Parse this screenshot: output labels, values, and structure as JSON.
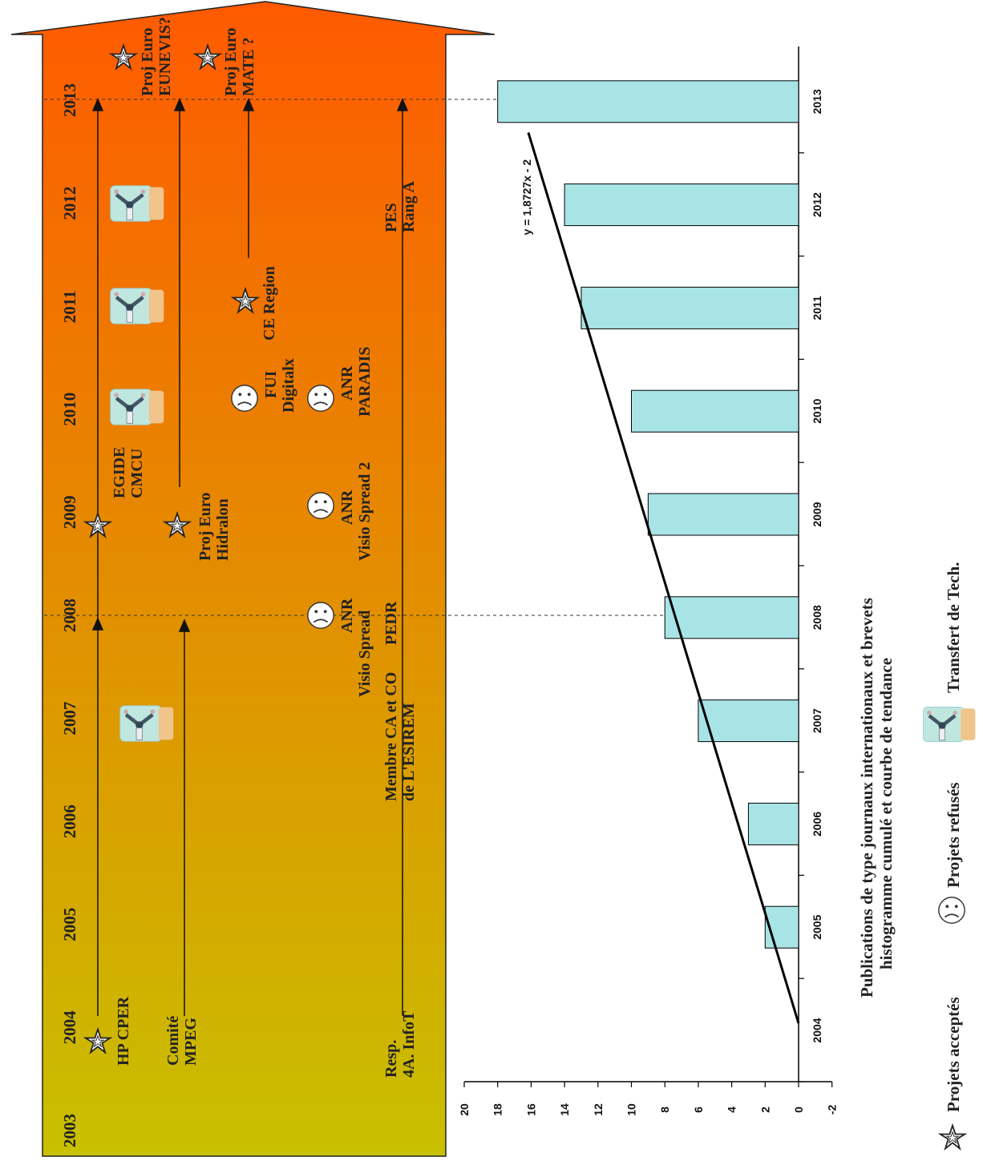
{
  "timeline": {
    "years": [
      "2003",
      "2004",
      "2005",
      "2006",
      "2007",
      "2008",
      "2009",
      "2010",
      "2011",
      "2012",
      "2013"
    ],
    "colors": {
      "bottom": "#c8c000",
      "top": "#ff5a00"
    },
    "tracks": [
      {
        "lines": [
          "HP CPER"
        ],
        "end_year": "2008",
        "continues_to": "2013"
      },
      {
        "lines": [
          "Comité",
          "MPEG"
        ],
        "end_year": "2008",
        "continues_to": "2013"
      },
      {
        "lines": [
          "Resp.",
          "4A. InfoT"
        ],
        "end_year": "2013"
      }
    ],
    "labels": {
      "egide": [
        "EGIDE",
        "CMCU"
      ],
      "hidralon": [
        "Proj Euro",
        "Hidralon"
      ],
      "esirem": [
        "Membre CA et CO",
        "de L'ESIREM"
      ],
      "pedr": "PEDR",
      "pes": [
        "PES",
        "Rang A"
      ],
      "anr1": [
        "ANR",
        "Visio Spread"
      ],
      "anr2": [
        "ANR",
        "Visio Spread 2"
      ],
      "anr3": [
        "ANR",
        "PARADIS"
      ],
      "fui": [
        "FUI",
        "Digitalx"
      ],
      "ce": "CE Region",
      "eunevis": [
        "Proj Euro",
        "EUNEVIS?"
      ],
      "mate": [
        "Proj Euro",
        "MATE ?"
      ]
    }
  },
  "chart_data": {
    "type": "bar",
    "categories": [
      "2004",
      "2005",
      "2006",
      "2007",
      "2008",
      "2009",
      "2010",
      "2011",
      "2012",
      "2013"
    ],
    "series": [
      {
        "values": [
          0,
          2,
          3,
          6,
          8,
          9,
          10,
          13,
          14,
          18
        ]
      }
    ],
    "trendline": {
      "equation": "y = 1,8727x - 2",
      "slope": 1.8727,
      "intercept": -2
    },
    "ylim": [
      -2,
      20
    ],
    "yticks": [
      "-2",
      "0",
      "2",
      "4",
      "6",
      "8",
      "10",
      "12",
      "14",
      "16",
      "18",
      "20"
    ],
    "bar_color": "#a8e4e6"
  },
  "caption": [
    "Publications de type journaux internationaux et brevets",
    "histogramme cumulé et courbe de tendance"
  ],
  "legend": {
    "accepted": "Projets acceptés",
    "refused": "Projets refusés",
    "transfer": "Transfert de Tech."
  }
}
